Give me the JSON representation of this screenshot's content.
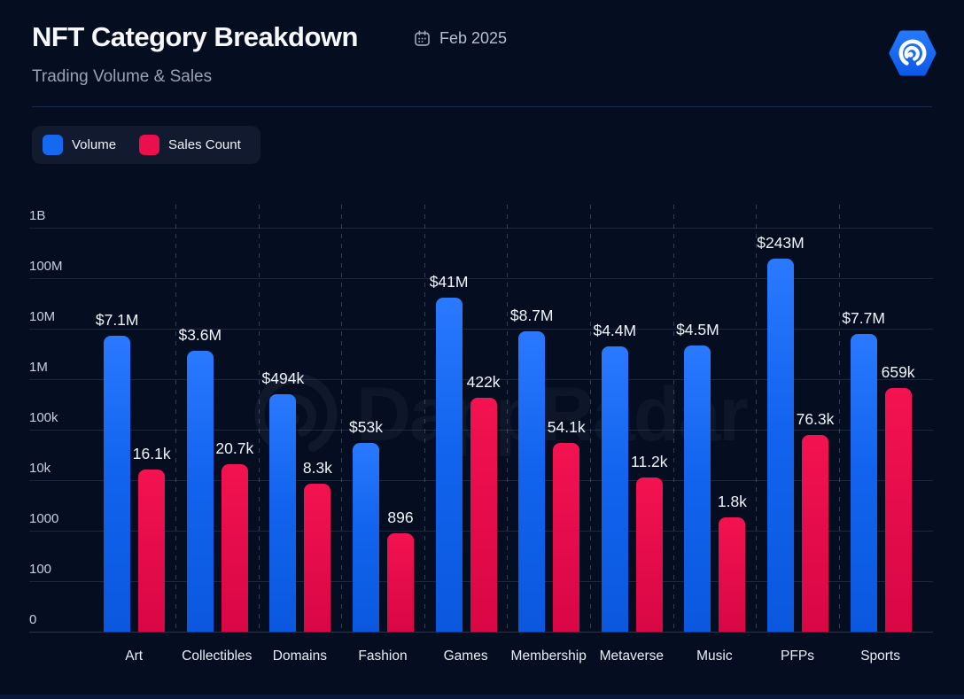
{
  "header": {
    "title": "NFT Category Breakdown",
    "period": "Feb 2025",
    "subtitle": "Trading Volume & Sales"
  },
  "legend": {
    "items": [
      {
        "label": "Volume",
        "color": "#1569f0"
      },
      {
        "label": "Sales Count",
        "color": "#e9104d"
      }
    ]
  },
  "watermark": {
    "text": "DappRadar"
  },
  "brand": {
    "logo_color": "#1368f2"
  },
  "chart_data": {
    "type": "bar",
    "y_scale": "log",
    "title": "NFT Category Breakdown",
    "subtitle": "Trading Volume & Sales",
    "period": "Feb 2025",
    "legend_position": "top-left",
    "grid": true,
    "categories": [
      "Art",
      "Collectibles",
      "Domains",
      "Fashion",
      "Games",
      "Membership",
      "Metaverse",
      "Music",
      "PFPs",
      "Sports"
    ],
    "y_ticks": [
      "1B",
      "100M",
      "10M",
      "1M",
      "100k",
      "10k",
      "1000",
      "100",
      "0"
    ],
    "y_tick_values": [
      1000000000,
      100000000,
      10000000,
      1000000,
      100000,
      10000,
      1000,
      100,
      0
    ],
    "series": [
      {
        "name": "Volume",
        "color": "#1569f0",
        "values": [
          7100000,
          3600000,
          494000,
          53000,
          41000000,
          8700000,
          4400000,
          4500000,
          243000000,
          7700000
        ],
        "labels": [
          "$7.1M",
          "$3.6M",
          "$494k",
          "$53k",
          "$41M",
          "$8.7M",
          "$4.4M",
          "$4.5M",
          "$243M",
          "$7.7M"
        ]
      },
      {
        "name": "Sales Count",
        "color": "#e9104d",
        "values": [
          16100,
          20700,
          8300,
          896,
          422000,
          54100,
          11200,
          1800,
          76300,
          659000
        ],
        "labels": [
          "16.1k",
          "20.7k",
          "8.3k",
          "896",
          "422k",
          "54.1k",
          "11.2k",
          "1.8k",
          "76.3k",
          "659k"
        ]
      }
    ]
  }
}
